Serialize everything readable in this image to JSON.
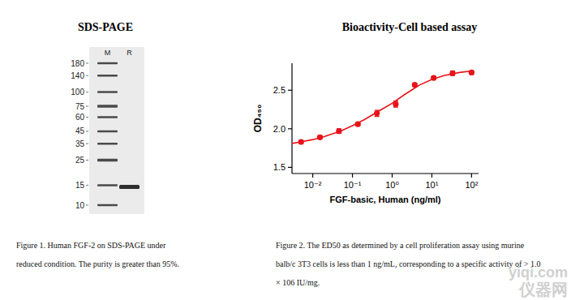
{
  "chart_data": {
    "type": "scatter",
    "title": "Bioactivity-Cell based assay",
    "xlabel": "FGF-basic, Human (ng/ml)",
    "ylabel": "OD₄₅₀",
    "log": "x",
    "grid": false,
    "xlim": [
      0.003,
      150
    ],
    "ylim": [
      1.42,
      2.85
    ],
    "xticks": [
      {
        "value": 0.01,
        "label": "10⁻²"
      },
      {
        "value": 0.1,
        "label": "10⁻¹"
      },
      {
        "value": 1,
        "label": "10⁰"
      },
      {
        "value": 10,
        "label": "10¹"
      },
      {
        "value": 100,
        "label": "10²"
      }
    ],
    "yticks": [
      1.5,
      {
        "value": 2,
        "label": "2.0"
      },
      2.5
    ],
    "series": [
      {
        "type": "scatter",
        "color": "#e8141b",
        "marker": "circle",
        "x": [
          0.00508,
          0.0152,
          0.0457,
          0.137,
          0.412,
          1.23,
          3.7,
          11.1,
          33.3,
          100
        ],
        "values": [
          1.83,
          1.89,
          1.97,
          2.06,
          2.2,
          2.32,
          2.57,
          2.66,
          2.72,
          2.73
        ],
        "errors": [
          0.02,
          0.02,
          0.03,
          0.02,
          0.04,
          0.04,
          0.02,
          0.02,
          0.03,
          0.02
        ]
      },
      {
        "type": "line",
        "color": "#e8141b",
        "line_style": "solid",
        "x": [
          0.003,
          0.005,
          0.01,
          0.02,
          0.05,
          0.1,
          0.2,
          0.5,
          1,
          2,
          5,
          10,
          20,
          50,
          100
        ],
        "values": [
          1.81,
          1.83,
          1.86,
          1.9,
          1.97,
          2.04,
          2.12,
          2.24,
          2.33,
          2.44,
          2.57,
          2.64,
          2.69,
          2.73,
          2.75
        ]
      }
    ],
    "caption": [
      "Figure 2. The ED50 as determined by a cell proliferation assay using murine",
      "balb/c 3T3 cells is less than 1 ng/mL, corresponding to a specific activity of > 1.0",
      "× 106 IU/mg."
    ]
  },
  "gel": {
    "title": "SDS-PAGE",
    "lanes": [
      "M",
      "R"
    ],
    "marker_kda": [
      180,
      140,
      100,
      75,
      60,
      45,
      35,
      25,
      15,
      10
    ],
    "sample_band_kda": [
      14.5
    ],
    "caption": [
      "Figure 1. Human FGF-2 on SDS-PAGE under",
      "reduced condition. The purity is greater than 95%."
    ]
  },
  "watermark": [
    "yiqi.com",
    "仪器网"
  ]
}
